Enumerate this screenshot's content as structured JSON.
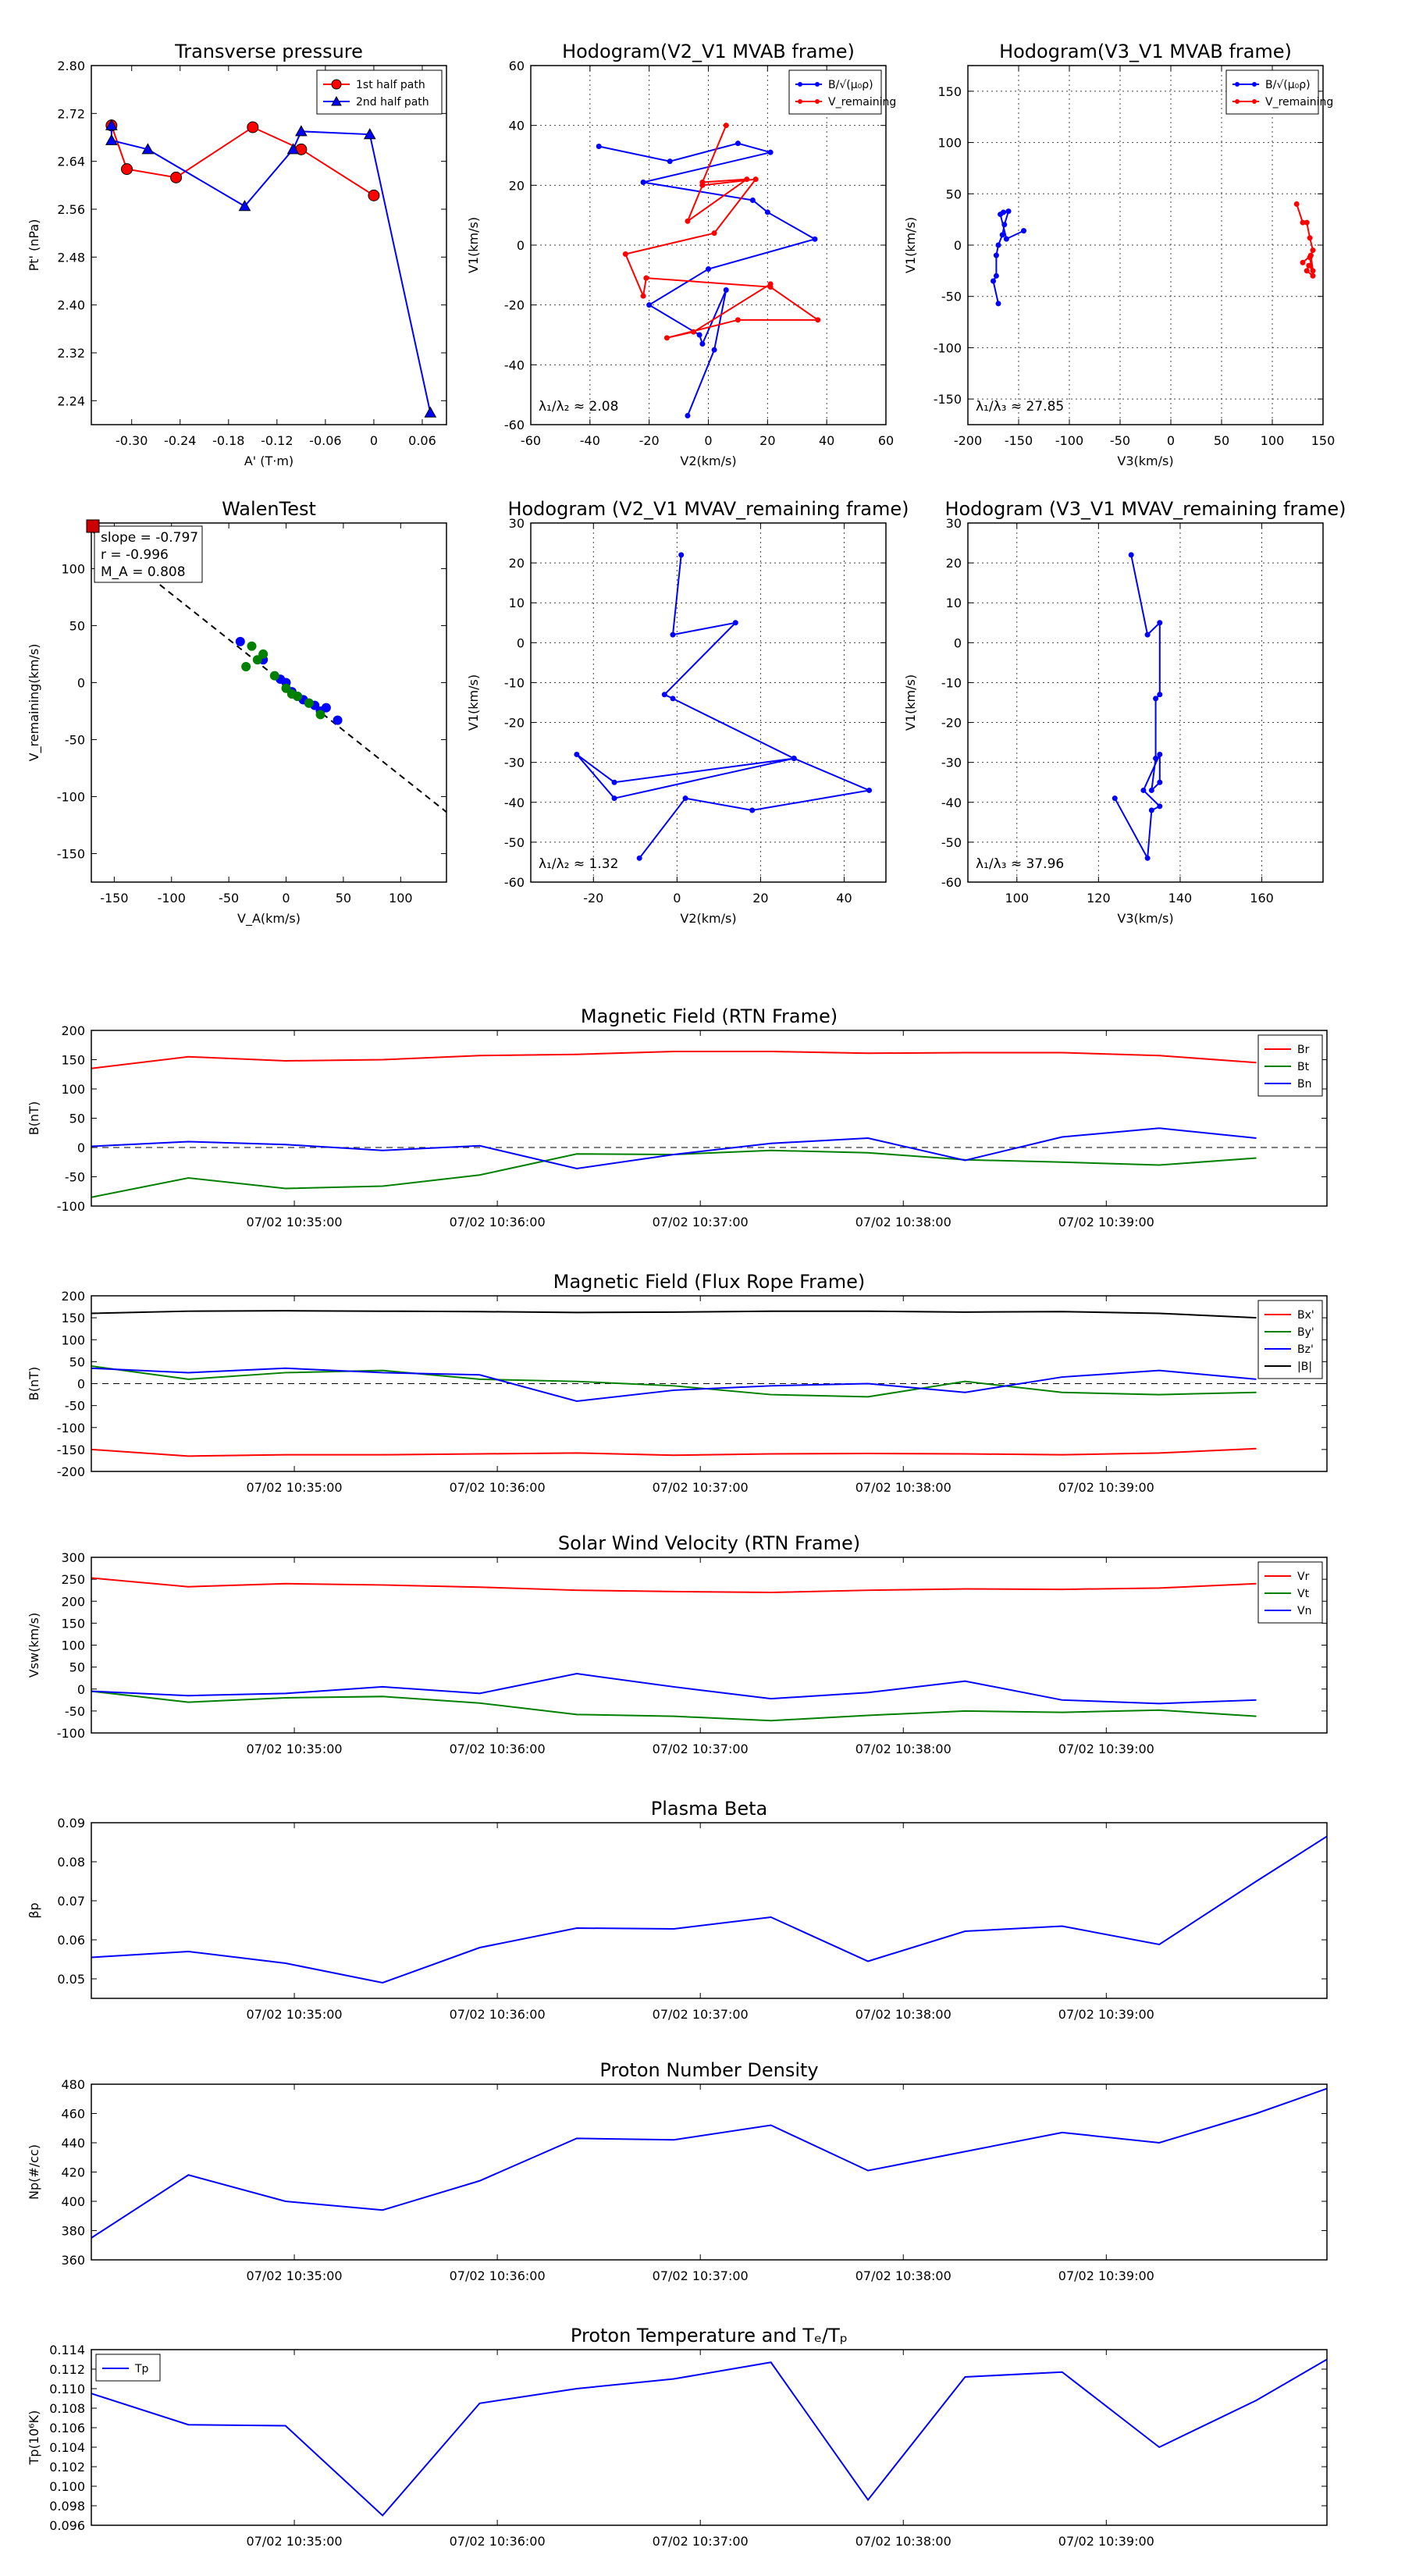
{
  "chart_data": [
    {
      "id": "tp_vs_A",
      "type": "scatter",
      "title": "Transverse pressure",
      "xlabel": "A' (T·m)",
      "ylabel": "Pt' (nPa)",
      "xlim": [
        -0.35,
        0.09
      ],
      "ylim": [
        2.2,
        2.8
      ],
      "xticks": [
        -0.3,
        -0.24,
        -0.18,
        -0.12,
        -0.06,
        0.0,
        0.06
      ],
      "yticks": [
        2.24,
        2.32,
        2.4,
        2.48,
        2.56,
        2.64,
        2.72,
        2.8
      ],
      "grid": false,
      "legend_position": "top-right",
      "series": [
        {
          "name": "1st half path",
          "color": "#ff0000",
          "marker": "circle",
          "x": [
            -0.325,
            -0.306,
            -0.245,
            -0.15,
            -0.09,
            0.0
          ],
          "y": [
            2.7,
            2.627,
            2.613,
            2.697,
            2.66,
            2.583
          ]
        },
        {
          "name": "2nd half path",
          "color": "#0000ff",
          "marker": "triangle",
          "x": [
            -0.325,
            -0.325,
            -0.28,
            -0.16,
            -0.1,
            -0.09,
            -0.005,
            0.07
          ],
          "y": [
            2.7,
            2.675,
            2.66,
            2.565,
            2.66,
            2.69,
            2.685,
            2.22
          ]
        }
      ]
    },
    {
      "id": "hodo_v2v1_mvab",
      "type": "line",
      "title": "Hodogram(V2_V1 MVAB frame)",
      "xlabel": "V2(km/s)",
      "ylabel": "V1(km/s)",
      "xlim": [
        -60,
        60
      ],
      "ylim": [
        -60,
        60
      ],
      "xticks": [
        -60,
        -40,
        -20,
        0,
        20,
        40,
        60
      ],
      "yticks": [
        -60,
        -40,
        -20,
        0,
        20,
        40,
        60
      ],
      "grid": true,
      "legend_position": "top-right",
      "annotation": "λ₁/λ₂ ≈ 2.08",
      "series": [
        {
          "name": "B/√(μ₀ρ)",
          "color": "#0000ff",
          "x": [
            -37,
            -13,
            10,
            21,
            -22,
            15,
            20,
            36,
            0,
            -20,
            -3,
            -2,
            6,
            2,
            -7
          ],
          "y": [
            33,
            28,
            34,
            31,
            21,
            15,
            11,
            2,
            -8,
            -20,
            -30,
            -33,
            -15,
            -35,
            -57
          ]
        },
        {
          "name": "V_remaining",
          "color": "#ff0000",
          "x": [
            6,
            -2,
            13,
            -7,
            -2,
            16,
            2,
            -28,
            -22,
            -21,
            21,
            37,
            10,
            -14,
            -5,
            21
          ],
          "y": [
            40,
            21,
            22,
            8,
            20,
            22,
            4,
            -3,
            -17,
            -11,
            -14,
            -25,
            -25,
            -31,
            -29,
            -13
          ]
        }
      ]
    },
    {
      "id": "hodo_v3v1_mvab",
      "type": "line",
      "title": "Hodogram(V3_V1 MVAB frame)",
      "xlabel": "V3(km/s)",
      "ylabel": "V1(km/s)",
      "xlim": [
        -200,
        150
      ],
      "ylim": [
        -175,
        175
      ],
      "xticks": [
        -200,
        -150,
        -100,
        -50,
        0,
        50,
        100,
        150
      ],
      "yticks": [
        -150,
        -100,
        -50,
        0,
        50,
        100,
        150
      ],
      "grid": true,
      "legend_position": "top-right",
      "annotation": "λ₁/λ₃ ≈ 27.85",
      "series": [
        {
          "name": "B/√(μ₀ρ)",
          "color": "#0000ff",
          "x": [
            -145,
            -162,
            -168,
            -165,
            -160,
            -164,
            -166,
            -170,
            -172,
            -172,
            -175,
            -170
          ],
          "y": [
            14,
            6,
            30,
            32,
            33,
            20,
            10,
            0,
            -10,
            -30,
            -35,
            -57
          ]
        },
        {
          "name": "V_remaining",
          "color": "#ff0000",
          "x": [
            124,
            130,
            134,
            137,
            140,
            137,
            140,
            134,
            136,
            140,
            138,
            130
          ],
          "y": [
            40,
            22,
            22,
            7,
            -5,
            -12,
            -30,
            -25,
            -20,
            -25,
            -10,
            -17
          ]
        }
      ]
    },
    {
      "id": "walen_test",
      "type": "scatter",
      "title": "WalenTest",
      "xlabel": "V_A(km/s)",
      "ylabel": "V_remaining(km/s)",
      "xlim": [
        -170,
        140
      ],
      "ylim": [
        -175,
        140
      ],
      "xticks": [
        -150,
        -100,
        -50,
        0,
        50,
        100
      ],
      "yticks": [
        -150,
        -100,
        -50,
        0,
        50,
        100
      ],
      "grid": false,
      "stats": [
        "slope = -0.797",
        "r = -0.996",
        "M_A = 0.808"
      ],
      "fit": {
        "slope": -0.797,
        "intercept": -2
      },
      "series": [
        {
          "name": "blue",
          "color": "#0000ff",
          "x": [
            -40,
            -5,
            0,
            5,
            10,
            15,
            20,
            25,
            30,
            35,
            45,
            -20
          ],
          "y": [
            36,
            3,
            0,
            -8,
            -12,
            -15,
            -18,
            -20,
            -25,
            -22,
            -33,
            20
          ]
        },
        {
          "name": "green",
          "color": "#008000",
          "x": [
            -35,
            -30,
            -25,
            -20,
            -10,
            0,
            5,
            10,
            20,
            30
          ],
          "y": [
            14,
            32,
            20,
            25,
            6,
            -5,
            -10,
            -12,
            -18,
            -28
          ]
        }
      ]
    },
    {
      "id": "hodo_v2v1_mvav",
      "type": "line",
      "title": "Hodogram (V2_V1 MVAV_remaining frame)",
      "xlabel": "V2(km/s)",
      "ylabel": "V1(km/s)",
      "xlim": [
        -35,
        50
      ],
      "ylim": [
        -60,
        30
      ],
      "xticks": [
        -20,
        0,
        20,
        40
      ],
      "yticks": [
        -60,
        -50,
        -40,
        -30,
        -20,
        -10,
        0,
        10,
        20,
        30
      ],
      "grid": true,
      "annotation": "λ₁/λ₂ ≈ 1.32",
      "series": [
        {
          "name": "hodogram",
          "color": "#0000ff",
          "x": [
            1,
            -1,
            14,
            -3,
            -1,
            28,
            -15,
            -24,
            -15,
            28,
            46,
            18,
            2,
            -9
          ],
          "y": [
            22,
            2,
            5,
            -13,
            -14,
            -29,
            -35,
            -28,
            -39,
            -29,
            -37,
            -42,
            -39,
            -54
          ]
        }
      ]
    },
    {
      "id": "hodo_v3v1_mvav",
      "type": "line",
      "title": "Hodogram (V3_V1 MVAV_remaining frame)",
      "xlabel": "V3(km/s)",
      "ylabel": "V1(km/s)",
      "xlim": [
        88,
        175
      ],
      "ylim": [
        -60,
        30
      ],
      "xticks": [
        100,
        120,
        140,
        160
      ],
      "yticks": [
        -60,
        -50,
        -40,
        -30,
        -20,
        -10,
        0,
        10,
        20,
        30
      ],
      "grid": true,
      "annotation": "λ₁/λ₃ ≈ 37.96",
      "series": [
        {
          "name": "hodogram",
          "color": "#0000ff",
          "x": [
            128,
            132,
            135,
            135,
            134,
            134,
            133,
            135,
            135,
            131,
            135,
            133,
            132,
            124
          ],
          "y": [
            22,
            2,
            5,
            -13,
            -14,
            -29,
            -37,
            -35,
            -28,
            -37,
            -41,
            -42,
            -54,
            -39
          ]
        }
      ]
    },
    {
      "id": "mag_rtn",
      "type": "line",
      "title": "Magnetic Field (RTN Frame)",
      "ylabel": "B(nT)",
      "xlim": [
        0,
        14
      ],
      "ylim": [
        -100,
        200
      ],
      "yticks": [
        -100,
        -50,
        0,
        50,
        100,
        150,
        200
      ],
      "xtick_positions": [
        2.3,
        4.6,
        6.9,
        9.2,
        11.5
      ],
      "xtick_labels": [
        "07/02 10:35:00",
        "07/02 10:36:00",
        "07/02 10:37:00",
        "07/02 10:38:00",
        "07/02 10:39:00"
      ],
      "zero_line": true,
      "legend_position": "top-right",
      "x": [
        0,
        1.1,
        2.2,
        3.3,
        4.4,
        5.5,
        6.6,
        7.7,
        8.8,
        9.9,
        11.0,
        12.1,
        13.2
      ],
      "series": [
        {
          "name": "Br",
          "color": "#ff0000",
          "values": [
            135,
            155,
            148,
            150,
            157,
            159,
            164,
            164,
            161,
            162,
            162,
            157,
            145
          ]
        },
        {
          "name": "Bt",
          "color": "#008000",
          "values": [
            -85,
            -52,
            -70,
            -66,
            -47,
            -11,
            -12,
            -5,
            -9,
            -21,
            -25,
            -30,
            -18
          ]
        },
        {
          "name": "Bn",
          "color": "#0000ff",
          "values": [
            2,
            10,
            5,
            -5,
            3,
            -36,
            -12,
            7,
            16,
            -22,
            18,
            33,
            16
          ]
        }
      ]
    },
    {
      "id": "mag_flux_rope",
      "type": "line",
      "title": "Magnetic Field (Flux Rope Frame)",
      "ylabel": "B(nT)",
      "xlim": [
        0,
        14
      ],
      "ylim": [
        -200,
        200
      ],
      "yticks": [
        -200,
        -150,
        -100,
        -50,
        0,
        50,
        100,
        150,
        200
      ],
      "xtick_positions": [
        2.3,
        4.6,
        6.9,
        9.2,
        11.5
      ],
      "xtick_labels": [
        "07/02 10:35:00",
        "07/02 10:36:00",
        "07/02 10:37:00",
        "07/02 10:38:00",
        "07/02 10:39:00"
      ],
      "zero_line": true,
      "legend_position": "top-right",
      "x": [
        0,
        1.1,
        2.2,
        3.3,
        4.4,
        5.5,
        6.6,
        7.7,
        8.8,
        9.9,
        11.0,
        12.1,
        13.2
      ],
      "series": [
        {
          "name": "Bx'",
          "color": "#ff0000",
          "values": [
            -150,
            -165,
            -162,
            -162,
            -160,
            -158,
            -163,
            -160,
            -159,
            -160,
            -162,
            -158,
            -148
          ]
        },
        {
          "name": "By'",
          "color": "#008000",
          "values": [
            40,
            10,
            25,
            30,
            10,
            5,
            -5,
            -25,
            -30,
            5,
            -20,
            -25,
            -20
          ]
        },
        {
          "name": "Bz'",
          "color": "#0000ff",
          "values": [
            35,
            25,
            35,
            25,
            20,
            -40,
            -15,
            -5,
            0,
            -20,
            15,
            30,
            10
          ]
        },
        {
          "name": "|B|",
          "color": "#000000",
          "values": [
            160,
            165,
            166,
            165,
            164,
            162,
            163,
            165,
            165,
            163,
            164,
            160,
            150
          ]
        }
      ]
    },
    {
      "id": "sw_velocity",
      "type": "line",
      "title": "Solar Wind Velocity (RTN Frame)",
      "ylabel": "Vsw(km/s)",
      "xlim": [
        0,
        14
      ],
      "ylim": [
        -100,
        300
      ],
      "yticks": [
        -100,
        -50,
        0,
        50,
        100,
        150,
        200,
        250,
        300
      ],
      "xtick_positions": [
        2.3,
        4.6,
        6.9,
        9.2,
        11.5
      ],
      "xtick_labels": [
        "07/02 10:35:00",
        "07/02 10:36:00",
        "07/02 10:37:00",
        "07/02 10:38:00",
        "07/02 10:39:00"
      ],
      "legend_position": "top-right",
      "x": [
        0,
        1.1,
        2.2,
        3.3,
        4.4,
        5.5,
        6.6,
        7.7,
        8.8,
        9.9,
        11.0,
        12.1,
        13.2
      ],
      "series": [
        {
          "name": "Vr",
          "color": "#ff0000",
          "values": [
            253,
            233,
            240,
            237,
            232,
            225,
            222,
            220,
            225,
            228,
            227,
            230,
            240
          ]
        },
        {
          "name": "Vt",
          "color": "#008000",
          "values": [
            -5,
            -30,
            -20,
            -17,
            -32,
            -58,
            -62,
            -72,
            -60,
            -50,
            -53,
            -48,
            -62
          ]
        },
        {
          "name": "Vn",
          "color": "#0000ff",
          "values": [
            -5,
            -15,
            -10,
            5,
            -10,
            35,
            5,
            -22,
            -8,
            18,
            -25,
            -33,
            -25
          ]
        }
      ]
    },
    {
      "id": "plasma_beta",
      "type": "line",
      "title": "Plasma Beta",
      "ylabel": "βp",
      "xlim": [
        0,
        14
      ],
      "ylim": [
        0.045,
        0.09
      ],
      "yticks": [
        0.05,
        0.06,
        0.07,
        0.08,
        0.09
      ],
      "ytick_labels": [
        "0.05",
        "0.06",
        "0.07",
        "0.08",
        "0.09"
      ],
      "xtick_positions": [
        2.3,
        4.6,
        6.9,
        9.2,
        11.5
      ],
      "xtick_labels": [
        "07/02 10:35:00",
        "07/02 10:36:00",
        "07/02 10:37:00",
        "07/02 10:38:00",
        "07/02 10:39:00"
      ],
      "x": [
        0,
        1.1,
        2.2,
        3.3,
        4.4,
        5.5,
        6.6,
        7.7,
        8.8,
        9.9,
        11.0,
        12.1,
        13.2,
        14.0
      ],
      "series": [
        {
          "name": "beta",
          "color": "#0000ff",
          "values": [
            0.0555,
            0.057,
            0.054,
            0.049,
            0.058,
            0.063,
            0.0628,
            0.0658,
            0.0545,
            0.0622,
            0.0635,
            0.0588,
            0.075,
            0.0865
          ]
        }
      ]
    },
    {
      "id": "proton_density",
      "type": "line",
      "title": "Proton Number Density",
      "ylabel": "Np(#/cc)",
      "xlim": [
        0,
        14
      ],
      "ylim": [
        360,
        480
      ],
      "yticks": [
        360,
        380,
        400,
        420,
        440,
        460,
        480
      ],
      "xtick_positions": [
        2.3,
        4.6,
        6.9,
        9.2,
        11.5
      ],
      "xtick_labels": [
        "07/02 10:35:00",
        "07/02 10:36:00",
        "07/02 10:37:00",
        "07/02 10:38:00",
        "07/02 10:39:00"
      ],
      "x": [
        0,
        1.1,
        2.2,
        3.3,
        4.4,
        5.5,
        6.6,
        7.7,
        8.8,
        9.9,
        11.0,
        12.1,
        13.2,
        14.0
      ],
      "series": [
        {
          "name": "Np",
          "color": "#0000ff",
          "values": [
            375,
            418,
            400,
            394,
            414,
            443,
            442,
            452,
            421,
            434,
            447,
            440,
            460,
            477
          ]
        }
      ]
    },
    {
      "id": "proton_temp",
      "type": "line",
      "title": "Proton Temperature and Tₑ/Tₚ",
      "ylabel": "Tp(10⁶K)",
      "xlim": [
        0,
        14
      ],
      "ylim": [
        0.096,
        0.114
      ],
      "yticks": [
        0.096,
        0.098,
        0.1,
        0.102,
        0.104,
        0.106,
        0.108,
        0.11,
        0.112,
        0.114
      ],
      "ytick_labels": [
        "0.096",
        "0.098",
        "0.100",
        "0.102",
        "0.104",
        "0.106",
        "0.108",
        "0.110",
        "0.112",
        "0.114"
      ],
      "xtick_positions": [
        2.3,
        4.6,
        6.9,
        9.2,
        11.5
      ],
      "xtick_labels": [
        "07/02 10:35:00",
        "07/02 10:36:00",
        "07/02 10:37:00",
        "07/02 10:38:00",
        "07/02 10:39:00"
      ],
      "legend_position": "top-left",
      "x": [
        0,
        1.1,
        2.2,
        3.3,
        4.4,
        5.5,
        6.6,
        7.7,
        8.8,
        9.9,
        11.0,
        12.1,
        13.2,
        14.0
      ],
      "series": [
        {
          "name": "Tp",
          "color": "#0000ff",
          "values": [
            0.1095,
            0.1063,
            0.1062,
            0.097,
            0.1085,
            0.11,
            0.111,
            0.1127,
            0.0986,
            0.1112,
            0.1117,
            0.104,
            0.1088,
            0.113
          ]
        }
      ]
    }
  ]
}
